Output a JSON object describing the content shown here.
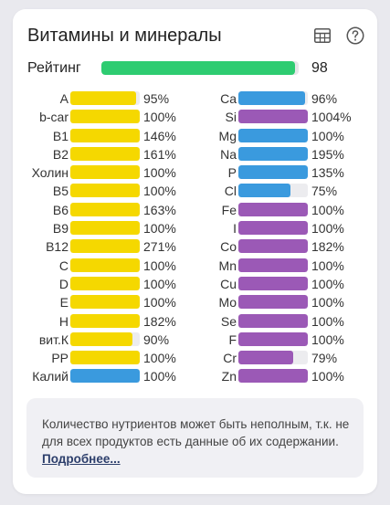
{
  "title": "Витамины и минералы",
  "icons": {
    "table": "table-icon",
    "help": "help-icon"
  },
  "colors": {
    "rating": "#2ecc71",
    "yellow": "#f5d800",
    "blue": "#3a9ade",
    "purple": "#9b59b6",
    "track": "#ececef"
  },
  "rating": {
    "label": "Рейтинг",
    "value": "98",
    "fraction": 0.98
  },
  "vitamins": [
    {
      "label": "A",
      "pct": "95%",
      "fill": 0.95,
      "color": "yellow"
    },
    {
      "label": "b-car",
      "pct": "100%",
      "fill": 1.0,
      "color": "yellow"
    },
    {
      "label": "B1",
      "pct": "146%",
      "fill": 1.0,
      "color": "yellow"
    },
    {
      "label": "B2",
      "pct": "161%",
      "fill": 1.0,
      "color": "yellow"
    },
    {
      "label": "Холин",
      "pct": "100%",
      "fill": 1.0,
      "color": "yellow"
    },
    {
      "label": "B5",
      "pct": "100%",
      "fill": 1.0,
      "color": "yellow"
    },
    {
      "label": "B6",
      "pct": "163%",
      "fill": 1.0,
      "color": "yellow"
    },
    {
      "label": "B9",
      "pct": "100%",
      "fill": 1.0,
      "color": "yellow"
    },
    {
      "label": "B12",
      "pct": "271%",
      "fill": 1.0,
      "color": "yellow"
    },
    {
      "label": "C",
      "pct": "100%",
      "fill": 1.0,
      "color": "yellow"
    },
    {
      "label": "D",
      "pct": "100%",
      "fill": 1.0,
      "color": "yellow"
    },
    {
      "label": "E",
      "pct": "100%",
      "fill": 1.0,
      "color": "yellow"
    },
    {
      "label": "H",
      "pct": "182%",
      "fill": 1.0,
      "color": "yellow"
    },
    {
      "label": "вит.К",
      "pct": "90%",
      "fill": 0.9,
      "color": "yellow"
    },
    {
      "label": "PP",
      "pct": "100%",
      "fill": 1.0,
      "color": "yellow"
    },
    {
      "label": "Калий",
      "pct": "100%",
      "fill": 1.0,
      "color": "blue"
    }
  ],
  "minerals": [
    {
      "label": "Ca",
      "pct": "96%",
      "fill": 0.96,
      "color": "blue"
    },
    {
      "label": "Si",
      "pct": "1004%",
      "fill": 1.0,
      "color": "purple"
    },
    {
      "label": "Mg",
      "pct": "100%",
      "fill": 1.0,
      "color": "blue"
    },
    {
      "label": "Na",
      "pct": "195%",
      "fill": 1.0,
      "color": "blue"
    },
    {
      "label": "P",
      "pct": "135%",
      "fill": 1.0,
      "color": "blue"
    },
    {
      "label": "Cl",
      "pct": "75%",
      "fill": 0.75,
      "color": "blue"
    },
    {
      "label": "Fe",
      "pct": "100%",
      "fill": 1.0,
      "color": "purple"
    },
    {
      "label": "I",
      "pct": "100%",
      "fill": 1.0,
      "color": "purple"
    },
    {
      "label": "Co",
      "pct": "182%",
      "fill": 1.0,
      "color": "purple"
    },
    {
      "label": "Mn",
      "pct": "100%",
      "fill": 1.0,
      "color": "purple"
    },
    {
      "label": "Cu",
      "pct": "100%",
      "fill": 1.0,
      "color": "purple"
    },
    {
      "label": "Mo",
      "pct": "100%",
      "fill": 1.0,
      "color": "purple"
    },
    {
      "label": "Se",
      "pct": "100%",
      "fill": 1.0,
      "color": "purple"
    },
    {
      "label": "F",
      "pct": "100%",
      "fill": 1.0,
      "color": "purple"
    },
    {
      "label": "Cr",
      "pct": "79%",
      "fill": 0.79,
      "color": "purple"
    },
    {
      "label": "Zn",
      "pct": "100%",
      "fill": 1.0,
      "color": "purple"
    }
  ],
  "note": {
    "text": "Количество нутриентов может быть неполным, т.к. не для всех продуктов есть данные об их содержании.",
    "link": "Подробнее..."
  }
}
